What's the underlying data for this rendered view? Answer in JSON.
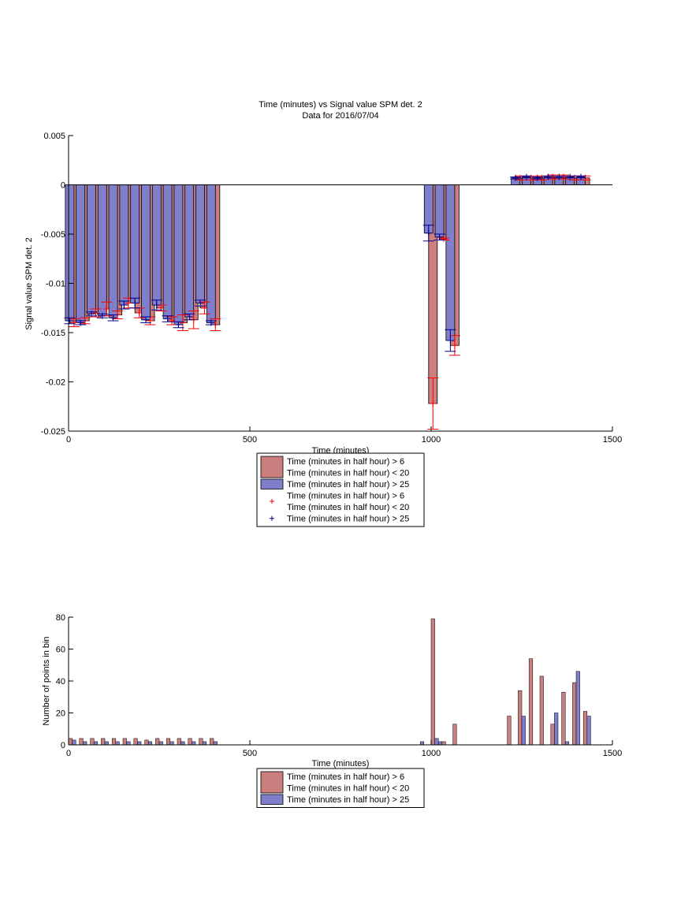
{
  "colors": {
    "red_fill": "#cc7f7f",
    "blue_fill": "#7f7fcc",
    "red_err": "#ff0000",
    "blue_err": "#00008b",
    "axis": "#000000"
  },
  "legend_top": {
    "entries": [
      {
        "kind": "bar",
        "color": "red",
        "text1": "Time (minutes in half hour) > 6",
        "text2": "Time (minutes in half hour) < 20"
      },
      {
        "kind": "bar",
        "color": "blue",
        "text1": "Time (minutes in half hour) > 25",
        "text2": ""
      },
      {
        "kind": "marker",
        "color": "red",
        "text1": "Time (minutes in half hour) > 6",
        "text2": "Time (minutes in half hour) < 20"
      },
      {
        "kind": "marker",
        "color": "blue",
        "text1": "Time (minutes in half hour) > 25",
        "text2": ""
      }
    ]
  },
  "legend_bottom": {
    "entries": [
      {
        "kind": "bar",
        "color": "red",
        "text1": "Time (minutes in half hour) > 6",
        "text2": "Time (minutes in half hour) < 20"
      },
      {
        "kind": "bar",
        "color": "blue",
        "text1": "Time (minutes in half hour) > 25",
        "text2": ""
      }
    ]
  },
  "chart_data": [
    {
      "type": "bar",
      "title": "Time (minutes) vs Signal value SPM det. 2",
      "subtitle": "Data for 2016/07/04",
      "xlabel": "Time (minutes)",
      "ylabel": "Signal value SPM det. 2",
      "xlim": [
        0,
        1500
      ],
      "ylim": [
        -0.025,
        0.005
      ],
      "xticks": [
        "0",
        "500",
        "1000",
        "1500"
      ],
      "yticks": [
        "-0.025",
        "-0.02",
        "-0.015",
        "-0.01",
        "-0.005",
        "0",
        "0.005"
      ],
      "xtick_values": [
        0,
        500,
        1000,
        1500
      ],
      "ytick_values": [
        -0.025,
        -0.02,
        -0.015,
        -0.01,
        -0.005,
        0,
        0.005
      ],
      "bar_width": 24,
      "series": [
        {
          "name": "Time (minutes in half hour) > 6 Time (minutes in half hour) < 20",
          "color": "red",
          "x": [
            15,
            45,
            75,
            105,
            135,
            165,
            195,
            225,
            255,
            285,
            315,
            345,
            375,
            405,
            1005,
            1035,
            1065,
            1245,
            1275,
            1305,
            1335,
            1365,
            1395,
            1425
          ],
          "values": [
            -0.014,
            -0.0138,
            -0.013,
            -0.0126,
            -0.0132,
            -0.012,
            -0.013,
            -0.0138,
            -0.0125,
            -0.0138,
            -0.014,
            -0.0137,
            -0.0125,
            -0.0142,
            -0.0222,
            -0.0055,
            -0.0163,
            0.0007,
            0.0007,
            0.0007,
            0.0008,
            0.0008,
            0.0007,
            0.0007
          ],
          "err": [
            0.0004,
            0.0003,
            0.0004,
            0.0007,
            0.0004,
            0.0005,
            0.0005,
            0.0004,
            0.0003,
            0.0004,
            0.0008,
            0.0009,
            0.0006,
            0.0006,
            0.0026,
            0.0001,
            0.001,
            0.0002,
            0.0002,
            0.0002,
            0.0002,
            0.0002,
            0.0002,
            0.0002
          ]
        },
        {
          "name": "Time (minutes in half hour) > 25",
          "color": "blue",
          "x": [
            3,
            33,
            63,
            93,
            123,
            153,
            183,
            213,
            243,
            273,
            303,
            333,
            363,
            393,
            993,
            1023,
            1053,
            1233,
            1263,
            1293,
            1323,
            1353,
            1383,
            1413
          ],
          "values": [
            -0.0138,
            -0.014,
            -0.0131,
            -0.0133,
            -0.0135,
            -0.0122,
            -0.012,
            -0.0137,
            -0.0122,
            -0.0136,
            -0.0142,
            -0.0134,
            -0.012,
            -0.014,
            -0.0049,
            -0.0053,
            -0.0158,
            0.0007,
            0.0008,
            0.0007,
            0.0008,
            0.0008,
            0.0008,
            0.0008
          ],
          "err": [
            0.0003,
            0.0002,
            0.0002,
            0.0002,
            0.0003,
            0.0004,
            0.0005,
            0.0003,
            0.0005,
            0.0003,
            0.0003,
            0.0003,
            0.0003,
            0.0002,
            0.0008,
            0.0003,
            0.0011,
            0.0001,
            0.0001,
            0.0001,
            0.0001,
            0.0001,
            0.0001,
            0.0001
          ]
        }
      ]
    },
    {
      "type": "bar",
      "xlabel": "Time (minutes)",
      "ylabel": "Number of points in bin",
      "xlim": [
        0,
        1500
      ],
      "ylim": [
        0,
        80
      ],
      "xticks": [
        "0",
        "500",
        "1000",
        "1500"
      ],
      "yticks": [
        "0",
        "20",
        "40",
        "60",
        "80"
      ],
      "xtick_values": [
        0,
        500,
        1000,
        1500
      ],
      "ytick_values": [
        0,
        20,
        40,
        60,
        80
      ],
      "bar_width": 10,
      "series": [
        {
          "name": "Time (minutes in half hour) > 6 Time (minutes in half hour) < 20",
          "color": "red",
          "x": [
            5,
            35,
            65,
            95,
            125,
            155,
            185,
            215,
            245,
            275,
            305,
            335,
            365,
            395,
            1005,
            1035,
            1065,
            1215,
            1245,
            1275,
            1305,
            1335,
            1365,
            1395,
            1425
          ],
          "values": [
            4,
            4,
            4,
            4,
            4,
            4,
            4,
            3,
            4,
            4,
            4,
            4,
            4,
            4,
            79,
            2,
            13,
            18,
            34,
            54,
            43,
            13,
            33,
            39,
            21
          ]
        },
        {
          "name": "Time (minutes in half hour) > 25",
          "color": "blue",
          "x": [
            15,
            45,
            75,
            105,
            135,
            165,
            195,
            225,
            255,
            285,
            315,
            345,
            375,
            405,
            975,
            1015,
            1025,
            1255,
            1345,
            1375,
            1405,
            1435
          ],
          "values": [
            3,
            2,
            2,
            2,
            2,
            2,
            2,
            2,
            2,
            2,
            2,
            2,
            2,
            2,
            2,
            4,
            2,
            18,
            20,
            2,
            46,
            18
          ]
        }
      ]
    }
  ]
}
